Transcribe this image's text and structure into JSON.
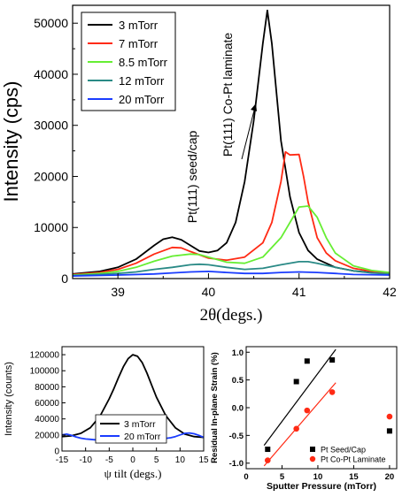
{
  "chart_data": [
    {
      "type": "line",
      "xlabel": "2θ(degs.)",
      "ylabel": "Intensity (cps)",
      "xlim": [
        38.5,
        42.0
      ],
      "ylim": [
        0,
        53500
      ],
      "xticks": [
        "39",
        "40",
        "41",
        "42"
      ],
      "yticks": [
        "0",
        "10000",
        "20000",
        "30000",
        "40000",
        "50000"
      ],
      "grid": false,
      "legend": "top-left",
      "annotations": [
        "Pt(111) seed/cap",
        "Pt(111) Co-Pt laminate"
      ],
      "series": [
        {
          "name": "3 mTorr",
          "color": "#000000",
          "x": [
            38.5,
            38.8,
            39.0,
            39.2,
            39.4,
            39.5,
            39.6,
            39.7,
            39.8,
            39.9,
            40.0,
            40.1,
            40.2,
            40.3,
            40.4,
            40.5,
            40.6,
            40.65,
            40.7,
            40.8,
            40.9,
            41.0,
            41.1,
            41.2,
            41.4,
            41.6,
            41.8,
            42.0
          ],
          "y": [
            900,
            1400,
            2200,
            3800,
            6500,
            7700,
            8100,
            7600,
            6500,
            5400,
            5100,
            5500,
            7000,
            11000,
            19000,
            31000,
            46000,
            52500,
            46000,
            27000,
            16000,
            9000,
            5500,
            3800,
            2200,
            1500,
            1200,
            1000
          ]
        },
        {
          "name": "7 mTorr",
          "color": "#ff2a14",
          "x": [
            38.5,
            38.8,
            39.0,
            39.2,
            39.4,
            39.6,
            39.7,
            39.8,
            40.0,
            40.2,
            40.4,
            40.6,
            40.7,
            40.8,
            40.85,
            40.9,
            41.0,
            41.05,
            41.1,
            41.2,
            41.3,
            41.4,
            41.6,
            41.8,
            42.0
          ],
          "y": [
            800,
            1200,
            1800,
            3000,
            4800,
            6100,
            6000,
            5300,
            4000,
            3600,
            4200,
            7000,
            11000,
            19000,
            24800,
            24200,
            24300,
            20000,
            15000,
            8000,
            5000,
            3500,
            2000,
            1400,
            1100
          ]
        },
        {
          "name": "8.5 mTorr",
          "color": "#66ee33",
          "x": [
            38.5,
            38.8,
            39.0,
            39.2,
            39.4,
            39.6,
            39.8,
            39.9,
            40.0,
            40.2,
            40.4,
            40.6,
            40.8,
            40.9,
            41.0,
            41.1,
            41.2,
            41.3,
            41.4,
            41.6,
            41.8,
            42.0
          ],
          "y": [
            700,
            1000,
            1400,
            2200,
            3400,
            4400,
            4800,
            4700,
            4200,
            3200,
            3000,
            4200,
            8000,
            11000,
            14000,
            14200,
            12000,
            8000,
            5000,
            2500,
            1600,
            1200
          ]
        },
        {
          "name": "12 mTorr",
          "color": "#2a8a86",
          "x": [
            38.5,
            38.8,
            39.0,
            39.2,
            39.4,
            39.6,
            39.8,
            39.9,
            40.0,
            40.2,
            40.4,
            40.6,
            40.8,
            41.0,
            41.1,
            41.2,
            41.4,
            41.6,
            41.8,
            42.0
          ],
          "y": [
            600,
            800,
            1000,
            1300,
            1800,
            2200,
            2700,
            2800,
            2700,
            2200,
            1800,
            2000,
            2700,
            3300,
            3300,
            3000,
            2200,
            1500,
            1100,
            900
          ]
        },
        {
          "name": "20 mTorr",
          "color": "#1a3cff",
          "x": [
            38.5,
            39.0,
            39.4,
            39.6,
            39.8,
            40.0,
            40.2,
            40.4,
            40.6,
            40.8,
            41.0,
            41.2,
            41.4,
            41.6,
            42.0
          ],
          "y": [
            500,
            700,
            900,
            1100,
            1300,
            1400,
            1200,
            1000,
            1000,
            1200,
            1300,
            1200,
            1000,
            800,
            700
          ]
        }
      ]
    },
    {
      "type": "line",
      "xlabel": "ψ tilt (degs.)",
      "ylabel": "Intensity (counts)",
      "xlim": [
        -15,
        15
      ],
      "ylim": [
        0,
        130000
      ],
      "xticks": [
        "-15",
        "-10",
        "-5",
        "0",
        "5",
        "10",
        "15"
      ],
      "yticks": [
        "0",
        "20000",
        "40000",
        "60000",
        "80000",
        "100000",
        "120000"
      ],
      "grid": false,
      "legend": "bottom-left",
      "series": [
        {
          "name": "3 mTorr",
          "color": "#000000",
          "x": [
            -15,
            -13,
            -11,
            -9,
            -7,
            -5,
            -4,
            -3,
            -2,
            -1,
            0,
            1,
            2,
            3,
            4,
            5,
            7,
            9,
            11,
            13,
            15
          ],
          "y": [
            18000,
            19000,
            22000,
            29000,
            43000,
            65000,
            78000,
            92000,
            105000,
            115000,
            120000,
            118000,
            110000,
            97000,
            82000,
            67000,
            44000,
            29000,
            21000,
            18000,
            17000
          ]
        },
        {
          "name": "20 mTorr",
          "color": "#1a3cff",
          "x": [
            -15,
            -14,
            -13,
            -12,
            -11,
            -10,
            -9,
            -8,
            -6,
            -4,
            -2,
            0,
            2,
            4,
            6,
            8,
            9,
            10,
            11,
            12,
            13,
            14,
            15
          ],
          "y": [
            20000,
            21000,
            19500,
            17500,
            16000,
            15000,
            14500,
            14000,
            13800,
            13600,
            13500,
            13500,
            13600,
            14000,
            15000,
            16500,
            18000,
            20000,
            22000,
            22500,
            21500,
            19500,
            17000
          ]
        }
      ]
    },
    {
      "type": "scatter",
      "xlabel": "Sputter Pressure (mTorr)",
      "ylabel": "Residual In-plane Strain (%)",
      "xlim": [
        0,
        21
      ],
      "ylim": [
        -1.1,
        1.1
      ],
      "xticks": [
        "0",
        "5",
        "10",
        "15",
        "20"
      ],
      "yticks": [
        "-1.0",
        "-0.5",
        "0.0",
        "0.5",
        "1.0"
      ],
      "grid": false,
      "legend": "bottom-right",
      "series": [
        {
          "name": "Pt Seed/Cap",
          "color": "#000000",
          "marker": "square",
          "x": [
            3,
            7,
            8.5,
            12,
            20
          ],
          "y": [
            -0.75,
            0.47,
            0.84,
            0.86,
            -0.42
          ],
          "fit_x": [
            2.5,
            12.5
          ],
          "fit_y": [
            -0.68,
            1.05
          ]
        },
        {
          "name": "Pt Co-Pt Laminate",
          "color": "#ff2a14",
          "marker": "circle",
          "x": [
            3,
            7,
            8.5,
            12,
            20
          ],
          "y": [
            -0.95,
            -0.38,
            -0.05,
            0.28,
            -0.16
          ],
          "fit_x": [
            2.5,
            12.5
          ],
          "fit_y": [
            -1.05,
            0.45
          ]
        }
      ]
    }
  ]
}
